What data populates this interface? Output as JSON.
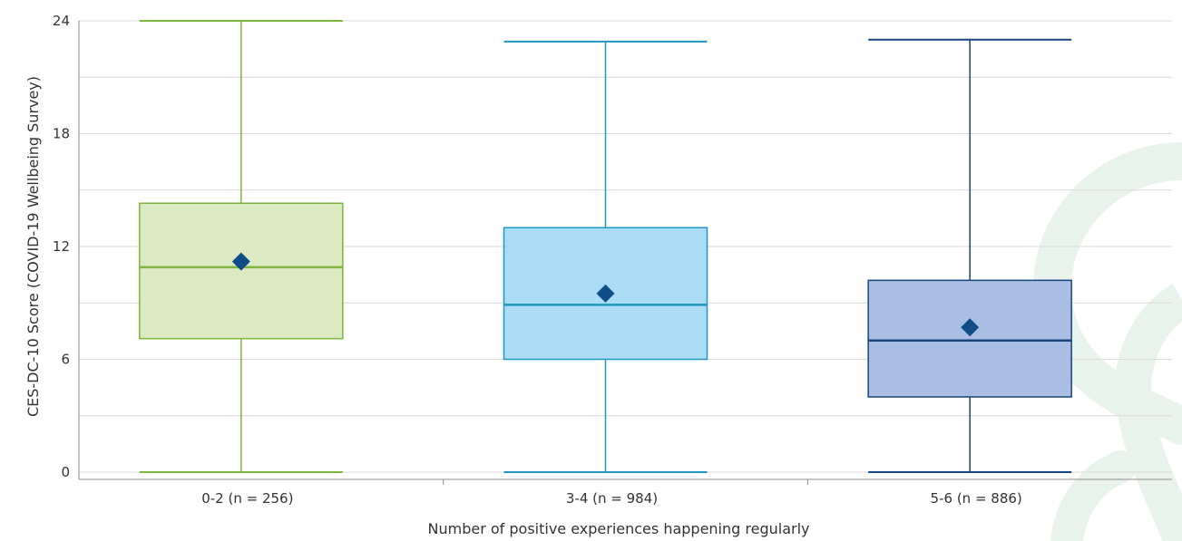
{
  "chart_data": {
    "type": "box",
    "xlabel": "Number of positive experiences happening regularly",
    "ylabel": "CES-DC-10 Score (COVID-19 Wellbeing Survey)",
    "ylim": [
      0,
      24
    ],
    "yticks": [
      0,
      6,
      12,
      18,
      24
    ],
    "grid": true,
    "categories": [
      "0-2 (n = 256)",
      "3-4 (n = 984)",
      "5-6 (n = 886)"
    ],
    "series": [
      {
        "category": "0-2 (n = 256)",
        "min": 0,
        "q1": 7.1,
        "median": 10.9,
        "q3": 14.3,
        "max": 24,
        "mean": 11.2,
        "fill": "#dbeac3",
        "stroke": "#7db53f"
      },
      {
        "category": "3-4 (n = 984)",
        "min": 0,
        "q1": 6.0,
        "median": 8.9,
        "q3": 13.0,
        "max": 22.9,
        "mean": 9.5,
        "fill": "#abdcf6",
        "stroke": "#1f97bf"
      },
      {
        "category": "5-6 (n = 886)",
        "min": 0,
        "q1": 4.0,
        "median": 7.0,
        "q3": 10.2,
        "max": 23.0,
        "mean": 7.7,
        "fill": "#aabde3",
        "stroke": "#15457f"
      }
    ],
    "mean_marker_color": "#0e4d86",
    "watermark_color": "#e8f3ec"
  }
}
